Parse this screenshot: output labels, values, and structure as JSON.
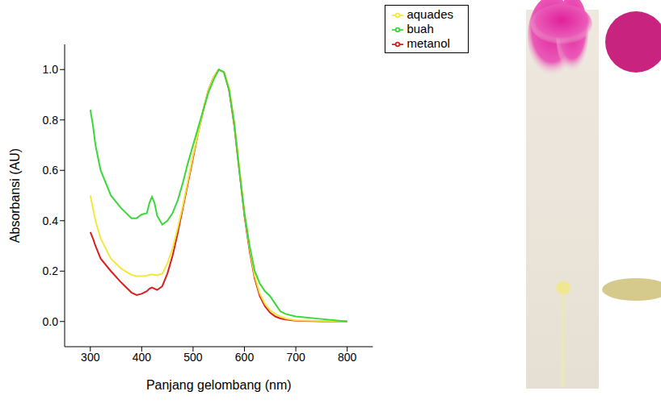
{
  "chart_data": {
    "type": "line",
    "x_label": "Panjang gelombang (nm)",
    "y_label": "Absorbansi (AU)",
    "x": [
      300,
      305,
      310,
      320,
      340,
      360,
      380,
      390,
      400,
      410,
      415,
      420,
      425,
      430,
      440,
      450,
      460,
      470,
      480,
      490,
      500,
      510,
      520,
      530,
      540,
      550,
      560,
      570,
      580,
      590,
      600,
      610,
      620,
      630,
      640,
      650,
      660,
      670,
      680,
      700,
      750,
      800
    ],
    "series": [
      {
        "name": "metanol",
        "color": "#d82020",
        "values": [
          0.355,
          0.33,
          0.3,
          0.25,
          0.2,
          0.155,
          0.115,
          0.105,
          0.11,
          0.12,
          0.13,
          0.135,
          0.13,
          0.125,
          0.14,
          0.19,
          0.26,
          0.35,
          0.45,
          0.55,
          0.65,
          0.75,
          0.84,
          0.92,
          0.97,
          1.0,
          0.99,
          0.92,
          0.78,
          0.6,
          0.42,
          0.28,
          0.17,
          0.1,
          0.06,
          0.035,
          0.02,
          0.012,
          0.008,
          0.003,
          0.001,
          0
        ]
      },
      {
        "name": "aquades",
        "color": "#f5e63c",
        "values": [
          0.5,
          0.45,
          0.4,
          0.33,
          0.25,
          0.21,
          0.185,
          0.18,
          0.18,
          0.182,
          0.185,
          0.187,
          0.185,
          0.183,
          0.19,
          0.23,
          0.29,
          0.37,
          0.46,
          0.56,
          0.66,
          0.75,
          0.84,
          0.92,
          0.97,
          1.0,
          0.99,
          0.93,
          0.79,
          0.61,
          0.43,
          0.29,
          0.18,
          0.11,
          0.07,
          0.045,
          0.03,
          0.02,
          0.012,
          0.005,
          0.002,
          0
        ]
      },
      {
        "name": "buah",
        "color": "#3ad83a",
        "values": [
          0.84,
          0.78,
          0.7,
          0.6,
          0.5,
          0.45,
          0.41,
          0.41,
          0.425,
          0.43,
          0.47,
          0.495,
          0.47,
          0.42,
          0.385,
          0.4,
          0.43,
          0.48,
          0.55,
          0.63,
          0.7,
          0.77,
          0.84,
          0.91,
          0.96,
          1.0,
          0.99,
          0.92,
          0.79,
          0.6,
          0.43,
          0.3,
          0.2,
          0.15,
          0.12,
          0.1,
          0.07,
          0.04,
          0.03,
          0.02,
          0.01,
          0
        ]
      }
    ],
    "xlim": [
      250,
      850
    ],
    "xticks": [
      300,
      400,
      500,
      600,
      700,
      800
    ],
    "ylim": [
      -0.1,
      1.1
    ],
    "yticks": [
      {
        "value": 0,
        "label": "0.0"
      },
      {
        "value": 0.2,
        "label": "0.2"
      },
      {
        "value": 0.4,
        "label": "0.4"
      },
      {
        "value": 0.6,
        "label": "0.6"
      },
      {
        "value": 0.8,
        "label": "0.8"
      },
      {
        "value": 1.0,
        "label": "1.0"
      }
    ],
    "grid": false,
    "legend": "upper right"
  }
}
